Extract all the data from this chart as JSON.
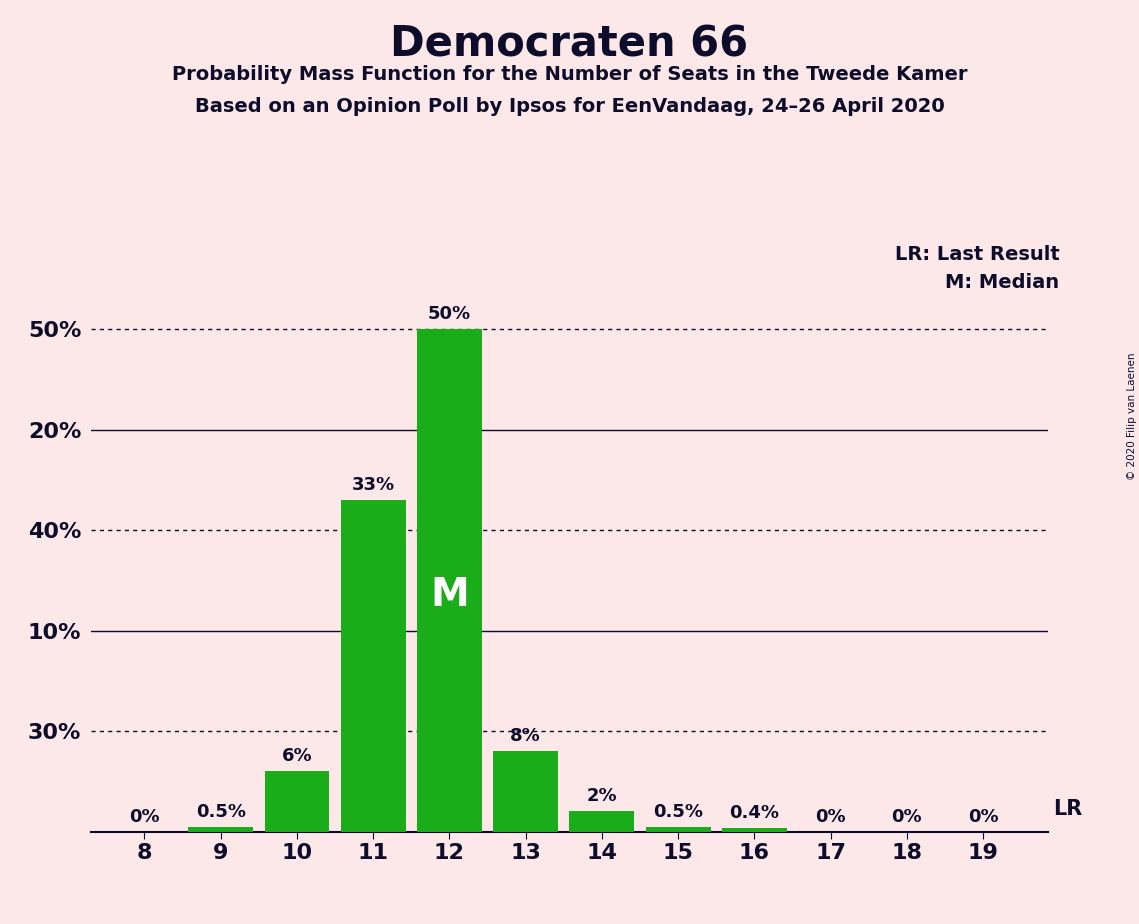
{
  "title": "Democraten 66",
  "subtitle1": "Probability Mass Function for the Number of Seats in the Tweede Kamer",
  "subtitle2": "Based on an Opinion Poll by Ipsos for EenVandaag, 24–26 April 2020",
  "copyright": "© 2020 Filip van Laenen",
  "seats": [
    8,
    9,
    10,
    11,
    12,
    13,
    14,
    15,
    16,
    17,
    18,
    19
  ],
  "probabilities": [
    0.0,
    0.5,
    6.0,
    33.0,
    50.0,
    8.0,
    2.0,
    0.5,
    0.4,
    0.0,
    0.0,
    0.0
  ],
  "labels": [
    "0%",
    "0.5%",
    "6%",
    "33%",
    "50%",
    "8%",
    "2%",
    "0.5%",
    "0.4%",
    "0%",
    "0%",
    "0%"
  ],
  "bar_color": "#1aad19",
  "background_color": "#fce8e8",
  "text_color": "#0d0d2b",
  "median_seat": 12,
  "median_label": "M",
  "lr_seat": 19,
  "lr_label": "LR",
  "legend_lr": "LR: Last Result",
  "legend_m": "M: Median",
  "yticks": [
    20,
    40
  ],
  "yticks_dotted": [
    10,
    30,
    50
  ],
  "ylim": [
    0,
    57
  ],
  "xlabel": "",
  "ylabel": ""
}
